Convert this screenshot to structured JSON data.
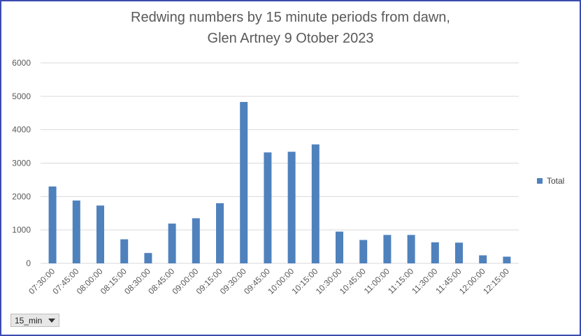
{
  "chart_data": {
    "type": "bar",
    "title_line1": "Redwing numbers by 15 minute periods from dawn,",
    "title_line2": "Glen Artney 9 Otober 2023",
    "categories": [
      "07:30:00",
      "07:45:00",
      "08:00:00",
      "08:15:00",
      "08:30:00",
      "08:45:00",
      "09:00:00",
      "09:15:00",
      "09:30:00",
      "09:45:00",
      "10:00:00",
      "10:15:00",
      "10:30:00",
      "10:45:00",
      "11:00:00",
      "11:15:00",
      "11:30:00",
      "11:45:00",
      "12:00:00",
      "12:15:00"
    ],
    "series": [
      {
        "name": "Total",
        "values": [
          2300,
          1880,
          1730,
          720,
          310,
          1190,
          1350,
          1800,
          4830,
          3320,
          3340,
          3560,
          950,
          700,
          850,
          850,
          630,
          620,
          240,
          200
        ],
        "color": "#4f81bd"
      }
    ],
    "ylim": [
      0,
      6000
    ],
    "yticks": [
      "0",
      "1000",
      "2000",
      "3000",
      "4000",
      "5000",
      "6000"
    ],
    "grid": true,
    "legend_position": "right"
  },
  "field_button": {
    "label": "15_min"
  }
}
